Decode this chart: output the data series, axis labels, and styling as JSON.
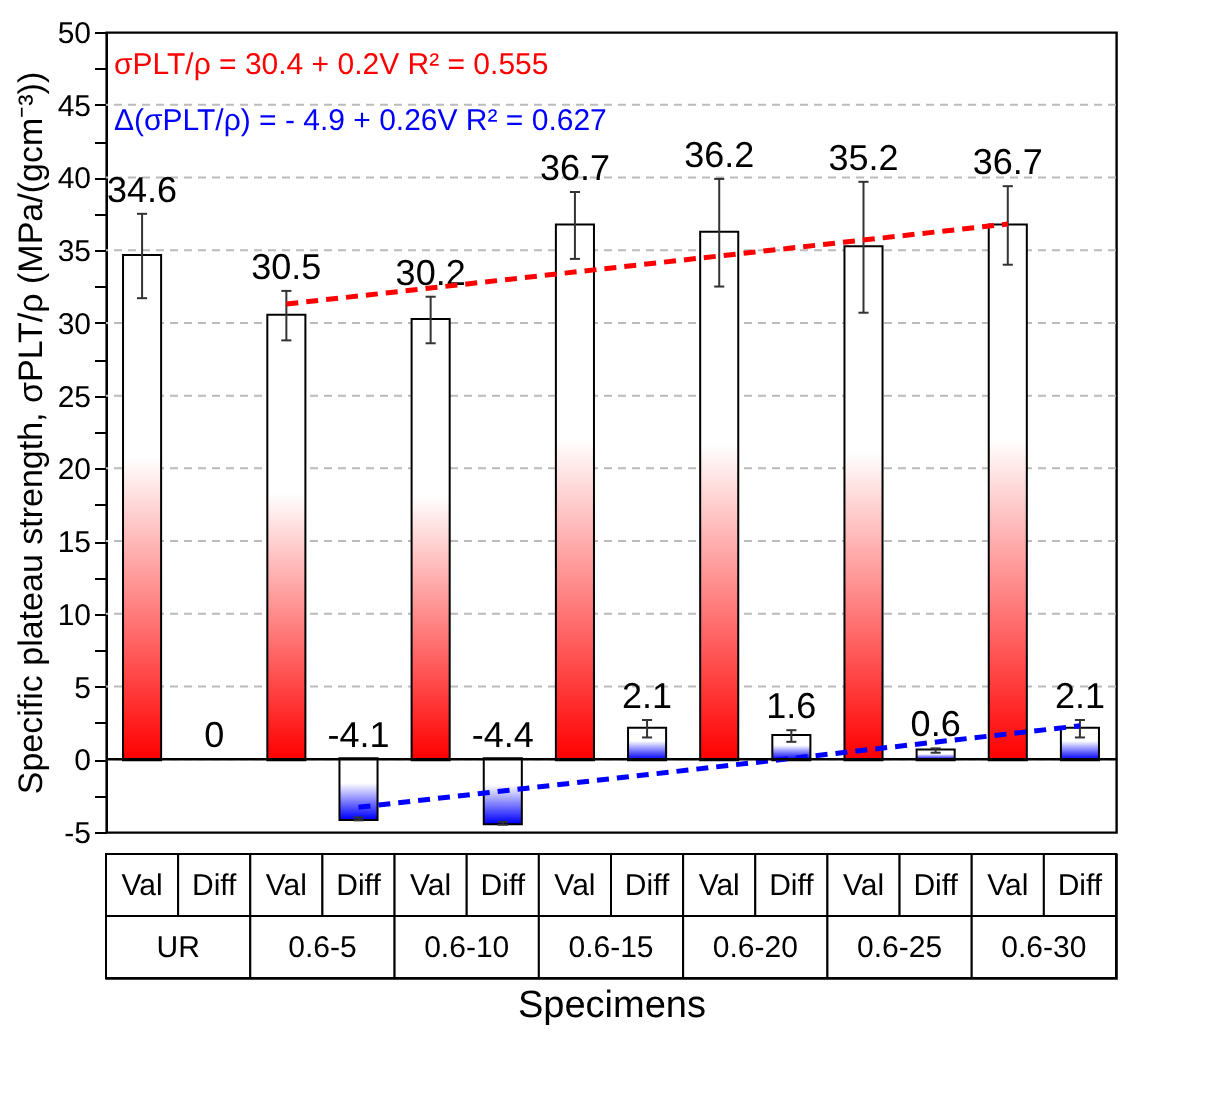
{
  "chart_data": {
    "type": "bar",
    "xlabel": "Specimens",
    "ylabel": "Specific plateau strength, σPLT/ρ (MPa/(gcm⁻³))",
    "categories": [
      "Val",
      "Diff",
      "Val",
      "Diff",
      "Val",
      "Diff",
      "Val",
      "Diff",
      "Val",
      "Diff",
      "Val",
      "Diff",
      "Val",
      "Diff"
    ],
    "series": [
      {
        "values": [
          34.6,
          0,
          30.5,
          -4.1,
          30.2,
          -4.4,
          36.7,
          2.1,
          36.2,
          1.6,
          35.2,
          0.6,
          36.7,
          2.1
        ],
        "value_labels": [
          "34.6",
          "0",
          "30.5",
          "-4.1",
          "30.2",
          "-4.4",
          "36.7",
          "2.1",
          "36.2",
          "1.6",
          "35.2",
          "0.6",
          "36.7",
          "2.1"
        ],
        "colors": [
          "#ff0000",
          "#0000ff",
          "#ff0000",
          "#0000ff",
          "#ff0000",
          "#0000ff",
          "#ff0000",
          "#0000ff",
          "#ff0000",
          "#0000ff",
          "#ff0000",
          "#0000ff",
          "#ff0000",
          "#0000ff"
        ],
        "errors": [
          2.9,
          null,
          1.7,
          0.1,
          1.6,
          0.1,
          2.3,
          0.6,
          3.7,
          0.4,
          4.5,
          0.15,
          2.7,
          0.6
        ]
      },
      {
        "type": "line",
        "name": "σPLT/ρ =  30.4 + 0.2V     R² = 0.555",
        "color": "#ff0000",
        "line_style": "dashed",
        "values": [
          null,
          null,
          31.3,
          null,
          null,
          null,
          null,
          null,
          null,
          null,
          null,
          null,
          36.8,
          null
        ]
      },
      {
        "type": "line",
        "name": "Δ(σPLT/ρ) =  - 4.9 + 0.26V      R² = 0.627",
        "color": "#0000ff",
        "line_style": "dashed",
        "values": [
          null,
          null,
          null,
          -3.3,
          null,
          null,
          null,
          null,
          null,
          null,
          null,
          null,
          null,
          2.3
        ]
      }
    ],
    "annotations": [
      "UR",
      "0.6-5",
      "0.6-10",
      "0.6-15",
      "0.6-20",
      "0.6-25",
      "0.6-30"
    ],
    "ylim": [
      -5,
      50
    ],
    "yticks": [
      -5,
      {
        "value": -2.5,
        "label": null
      },
      0,
      {
        "value": 2.5,
        "label": null
      },
      5,
      {
        "value": 7.5,
        "label": null
      },
      10,
      {
        "value": 12.5,
        "label": null
      },
      15,
      {
        "value": 17.5,
        "label": null
      },
      20,
      {
        "value": 22.5,
        "label": null
      },
      25,
      {
        "value": 27.5,
        "label": null
      },
      30,
      {
        "value": 32.5,
        "label": null
      },
      35,
      {
        "value": 37.5,
        "label": null
      },
      40,
      {
        "value": 42.5,
        "label": null
      },
      45,
      {
        "value": 47.5,
        "label": null
      },
      50
    ],
    "ref_lines": [
      {
        "axis": "y",
        "value": 0,
        "color": "#000000"
      }
    ],
    "grid": "y"
  }
}
